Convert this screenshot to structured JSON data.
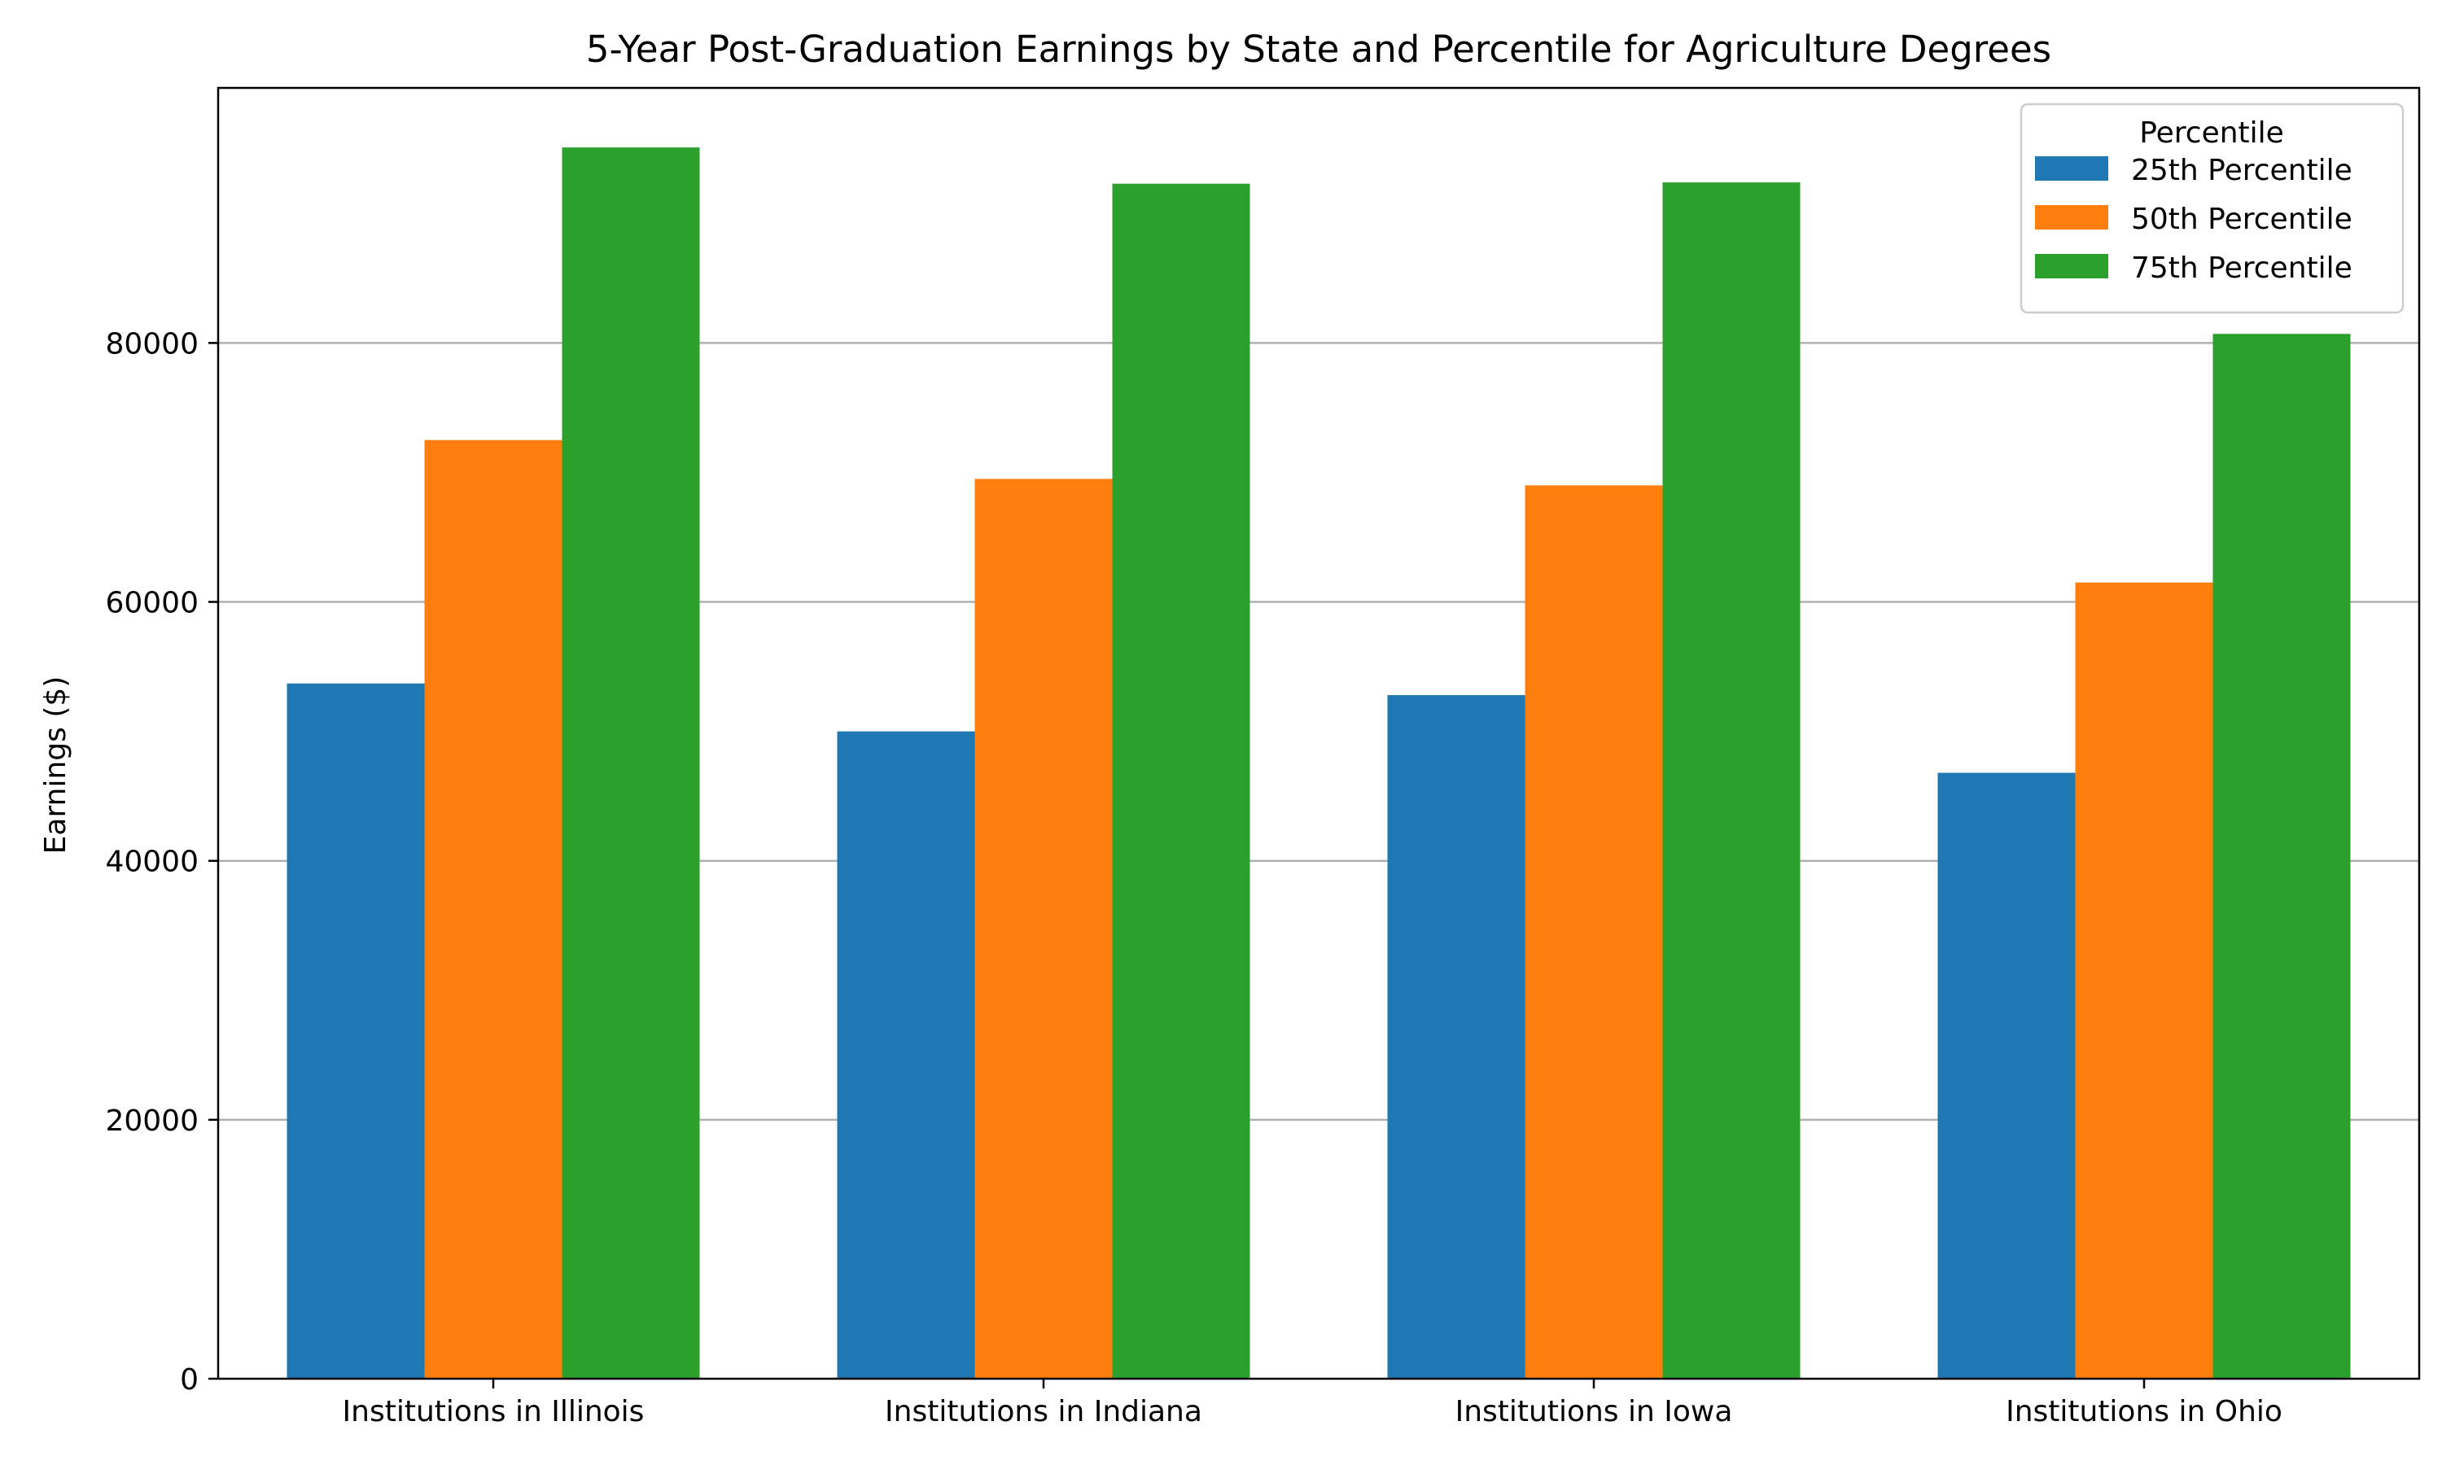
{
  "chart_data": {
    "type": "bar",
    "title": "5-Year Post-Graduation Earnings by State and Percentile for Agriculture Degrees",
    "xlabel": "",
    "ylabel": "Earnings ($)",
    "categories": [
      "Institutions in Illinois",
      "Institutions in Indiana",
      "Institutions in Iowa",
      "Institutions in Ohio"
    ],
    "series": [
      {
        "name": "25th Percentile",
        "color": "#1f77b4",
        "values": [
          53700,
          50000,
          52800,
          46800
        ]
      },
      {
        "name": "50th Percentile",
        "color": "#ff7f0e",
        "values": [
          72500,
          69500,
          69000,
          61500
        ]
      },
      {
        "name": "75th Percentile",
        "color": "#2ca02c",
        "values": [
          95100,
          92300,
          92400,
          80700
        ]
      }
    ],
    "ylim": [
      0,
      99700
    ],
    "yticks": [
      0,
      20000,
      40000,
      60000,
      80000
    ],
    "ytick_labels": [
      "0",
      "20000",
      "40000",
      "60000",
      "80000"
    ],
    "grid": "y",
    "legend": {
      "title": "Percentile",
      "position": "top-right"
    }
  }
}
